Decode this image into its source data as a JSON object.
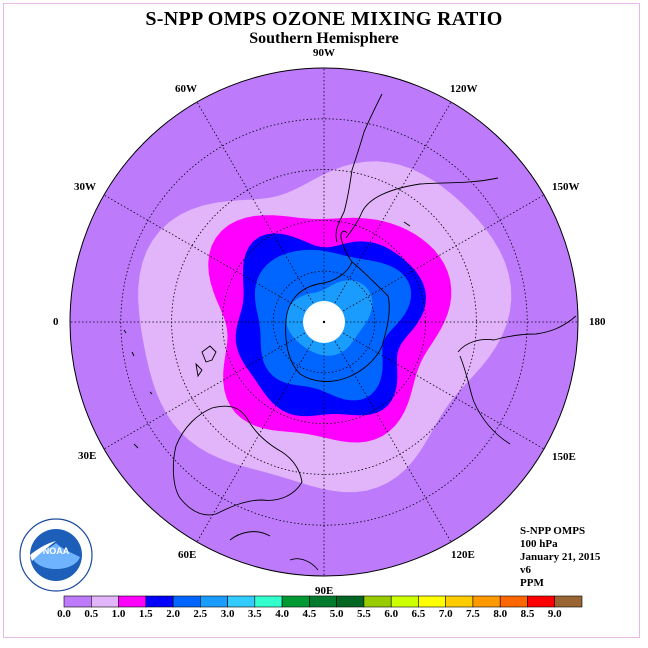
{
  "title": "S-NPP OMPS OZONE MIXING RATIO",
  "subtitle": "Southern Hemisphere",
  "longitudes": [
    {
      "label": "90W",
      "deg": -90
    },
    {
      "label": "60W",
      "deg": -60
    },
    {
      "label": "30W",
      "deg": -30
    },
    {
      "label": "0",
      "deg": 0
    },
    {
      "label": "30E",
      "deg": 30
    },
    {
      "label": "60E",
      "deg": 60
    },
    {
      "label": "90E",
      "deg": 90
    },
    {
      "label": "120E",
      "deg": 120
    },
    {
      "label": "150E",
      "deg": 150
    },
    {
      "label": "180",
      "deg": 180
    },
    {
      "label": "150W",
      "deg": -150
    },
    {
      "label": "120W",
      "deg": -120
    }
  ],
  "info": {
    "instrument": "S-NPP OMPS",
    "level": "100 hPa",
    "date": "January 21, 2015",
    "version": "v6",
    "units": "PPM"
  },
  "logo": {
    "text": "NOAA"
  },
  "colors": {
    "bins": [
      "#bd7bfc",
      "#e2b4f9",
      "#ff00ff",
      "#0000ff",
      "#0066ff",
      "#1a9cff",
      "#33ccff",
      "#33ffcc",
      "#009933",
      "#007a2c",
      "#006622",
      "#99cc00",
      "#ccff00",
      "#ffff00",
      "#ffcc00",
      "#ff9900",
      "#ff6600",
      "#ff0000",
      "#996633"
    ],
    "outer": "#bd7bfc",
    "ring1": "#e2b4f9",
    "ring2": "#ff00ff",
    "ring3": "#0000ff",
    "ring4": "#0066ff",
    "ring5": "#1a9cff"
  },
  "legend_ticks": [
    "0.0",
    "0.5",
    "1.0",
    "1.5",
    "2.0",
    "2.5",
    "3.0",
    "3.5",
    "4.0",
    "4.5",
    "5.0",
    "5.5",
    "6.0",
    "6.5",
    "7.0",
    "7.5",
    "8.0",
    "8.5",
    "9.0"
  ]
}
